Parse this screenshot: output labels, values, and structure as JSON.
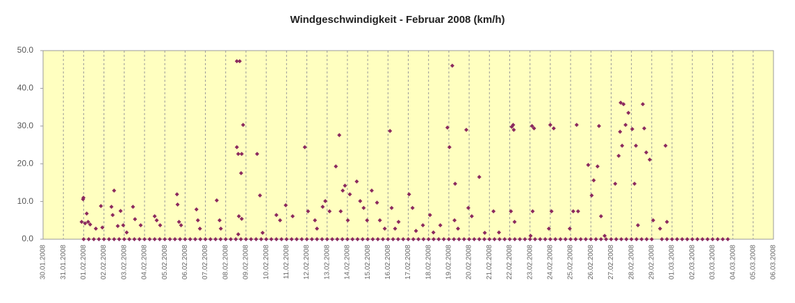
{
  "chart_data": {
    "type": "scatter",
    "title": "Windgeschwindigkeit - Februar 2008 (km/h)",
    "color": "#8b2a5e",
    "background": "#ffffc0",
    "grid": "x",
    "xlim": [
      39477,
      39513
    ],
    "ylim": [
      0,
      50
    ],
    "yticks": [
      {
        "value": 0,
        "label": "0.0"
      },
      {
        "value": 10,
        "label": "10.0"
      },
      {
        "value": 20,
        "label": "20.0"
      },
      {
        "value": 30,
        "label": "30.0"
      },
      {
        "value": 40,
        "label": "40.0"
      },
      {
        "value": 50,
        "label": "50.0"
      }
    ],
    "xticks": [
      {
        "value": 39477,
        "label": "30.01.2008"
      },
      {
        "value": 39478,
        "label": "31.01.2008"
      },
      {
        "value": 39479,
        "label": "01.02.2008"
      },
      {
        "value": 39480,
        "label": "02.02.2008"
      },
      {
        "value": 39481,
        "label": "03.02.2008"
      },
      {
        "value": 39482,
        "label": "04.02.2008"
      },
      {
        "value": 39483,
        "label": "05.02.2008"
      },
      {
        "value": 39484,
        "label": "06.02.2008"
      },
      {
        "value": 39485,
        "label": "07.02.2008"
      },
      {
        "value": 39486,
        "label": "08.02.2008"
      },
      {
        "value": 39487,
        "label": "09.02.2008"
      },
      {
        "value": 39488,
        "label": "10.02.2008"
      },
      {
        "value": 39489,
        "label": "11.02.2008"
      },
      {
        "value": 39490,
        "label": "12.02.2008"
      },
      {
        "value": 39491,
        "label": "13.02.2008"
      },
      {
        "value": 39492,
        "label": "14.02.2008"
      },
      {
        "value": 39493,
        "label": "15.02.2008"
      },
      {
        "value": 39494,
        "label": "16.02.2008"
      },
      {
        "value": 39495,
        "label": "17.02.2008"
      },
      {
        "value": 39496,
        "label": "18.02.2008"
      },
      {
        "value": 39497,
        "label": "19.02.2008"
      },
      {
        "value": 39498,
        "label": "20.02.2008"
      },
      {
        "value": 39499,
        "label": "21.02.2008"
      },
      {
        "value": 39500,
        "label": "22.02.2008"
      },
      {
        "value": 39501,
        "label": "23.02.2008"
      },
      {
        "value": 39502,
        "label": "24.02.2008"
      },
      {
        "value": 39503,
        "label": "25.02.2008"
      },
      {
        "value": 39504,
        "label": "26.02.2008"
      },
      {
        "value": 39505,
        "label": "27.02.2008"
      },
      {
        "value": 39506,
        "label": "28.02.2008"
      },
      {
        "value": 39507,
        "label": "29.02.2008"
      },
      {
        "value": 39508,
        "label": "01.03.2008"
      },
      {
        "value": 39509,
        "label": "02.03.2008"
      },
      {
        "value": 39510,
        "label": "03.03.2008"
      },
      {
        "value": 39511,
        "label": "04.03.2008"
      },
      {
        "value": 39512,
        "label": "05.03.2008"
      },
      {
        "value": 39513,
        "label": "06.03.2008"
      }
    ],
    "x": [
      39478.97,
      39478.99,
      39478.9,
      39479.07,
      39479.15,
      39479.22,
      39479.32,
      39479.6,
      39479.85,
      39479.92,
      39480.5,
      39480.37,
      39480.43,
      39480.68,
      39480.82,
      39480.95,
      39481.12,
      39481.43,
      39481.53,
      39481.81,
      39482.5,
      39482.6,
      39482.77,
      39483.6,
      39483.63,
      39483.7,
      39483.8,
      39484.56,
      39484.63,
      39484.73,
      39485.56,
      39485.7,
      39485.76,
      39486.55,
      39486.69,
      39486.55,
      39486.62,
      39486.79,
      39486.86,
      39486.76,
      39486.65,
      39486.79,
      39486.62,
      39487.55,
      39487.69,
      39487.82,
      39488.5,
      39488.68,
      39488.96,
      39489.3,
      39489.9,
      39490.06,
      39490.4,
      39490.5,
      39490.78,
      39490.91,
      39491.12,
      39491.43,
      39491.6,
      39491.67,
      39491.77,
      39491.88,
      39492.02,
      39492.12,
      39492.46,
      39492.63,
      39492.8,
      39492.97,
      39493.2,
      39493.46,
      39493.6,
      39493.84,
      39494.1,
      39494.18,
      39494.35,
      39494.52,
      39495.04,
      39495.21,
      39495.38,
      39495.72,
      39496.07,
      39496.24,
      39496.58,
      39496.93,
      39497.03,
      39497.17,
      39497.31,
      39497.28,
      39497.45,
      39497.86,
      39497.96,
      39498.13,
      39498.5,
      39498.77,
      39499.2,
      39499.47,
      39500.1,
      39500.17,
      39500.2,
      39500.06,
      39500.24,
      39501.1,
      39501.2,
      39501.13,
      39501.03,
      39502.0,
      39502.17,
      39502.06,
      39501.93,
      39503.3,
      39503.13,
      39503.37,
      39502.96,
      39503.87,
      39504.04,
      39504.14,
      39504.4,
      39504.33,
      39504.5,
      39504.68,
      39505.2,
      39505.37,
      39505.44,
      39505.47,
      39505.61,
      39505.54,
      39505.71,
      39505.85,
      39506.04,
      39506.15,
      39506.22,
      39506.32,
      39506.56,
      39506.63,
      39506.73,
      39506.9,
      39507.07,
      39507.41,
      39507.68,
      39507.75,
      39479,
      39479.25,
      39479.5,
      39479.75,
      39480,
      39480.25,
      39480.5,
      39480.75,
      39481,
      39481.25,
      39481.5,
      39481.75,
      39482,
      39482.25,
      39482.5,
      39482.75,
      39483,
      39483.25,
      39483.5,
      39483.75,
      39484,
      39484.25,
      39484.5,
      39484.75,
      39485,
      39485.25,
      39485.5,
      39485.75,
      39486,
      39486.25,
      39486.5,
      39486.75,
      39487,
      39487.25,
      39487.5,
      39487.75,
      39488,
      39488.25,
      39488.5,
      39488.75,
      39489,
      39489.25,
      39489.5,
      39489.75,
      39490,
      39490.25,
      39490.5,
      39490.75,
      39491,
      39491.25,
      39491.5,
      39491.75,
      39492,
      39492.25,
      39492.5,
      39492.75,
      39493,
      39493.25,
      39493.5,
      39493.75,
      39494,
      39494.25,
      39494.5,
      39494.75,
      39495,
      39495.25,
      39495.5,
      39495.75,
      39496,
      39496.25,
      39496.5,
      39496.75,
      39497,
      39497.25,
      39497.5,
      39497.75,
      39498,
      39498.25,
      39498.5,
      39498.75,
      39499,
      39499.25,
      39499.5,
      39499.75,
      39500,
      39500.25,
      39500.5,
      39500.75,
      39501,
      39501.25,
      39501.5,
      39501.75,
      39502,
      39502.25,
      39502.5,
      39502.75,
      39503,
      39503.25,
      39503.5,
      39503.75,
      39504,
      39504.25,
      39504.5,
      39504.75,
      39505,
      39505.25,
      39505.5,
      39505.75,
      39506,
      39506.25,
      39506.5,
      39506.75,
      39507,
      39507.5,
      39507.75,
      39508,
      39508.25,
      39508.5,
      39508.75,
      39509,
      39509.25,
      39509.5,
      39509.75,
      39510,
      39510.25,
      39510.5,
      39510.75
    ],
    "values": [
      10.6,
      11.0,
      4.6,
      4.2,
      6.8,
      4.6,
      3.9,
      2.8,
      8.8,
      3.1,
      12.9,
      8.6,
      6.4,
      3.5,
      7.5,
      3.7,
      1.8,
      8.6,
      5.3,
      3.7,
      6.1,
      5.0,
      3.7,
      11.9,
      9.2,
      4.6,
      3.7,
      7.9,
      5.0,
      2.8,
      10.3,
      5.0,
      2.8,
      47.2,
      47.2,
      24.4,
      22.6,
      22.6,
      30.3,
      17.5,
      6.1,
      5.4,
      1.3,
      22.6,
      11.6,
      1.7,
      6.4,
      5.0,
      9.0,
      6.1,
      24.4,
      7.4,
      5.0,
      2.8,
      8.6,
      10.1,
      7.4,
      19.3,
      27.6,
      7.4,
      12.9,
      14.2,
      5.0,
      11.9,
      15.3,
      10.1,
      8.3,
      5.0,
      12.9,
      9.7,
      5.0,
      2.8,
      28.7,
      8.3,
      2.8,
      4.6,
      11.9,
      8.3,
      2.2,
      3.7,
      6.4,
      1.8,
      3.7,
      29.6,
      24.4,
      46.0,
      14.7,
      5.0,
      2.8,
      29.0,
      8.3,
      6.1,
      16.5,
      1.7,
      7.4,
      1.8,
      29.8,
      30.3,
      29.0,
      7.4,
      4.6,
      30.0,
      29.4,
      7.4,
      0.9,
      30.3,
      29.4,
      7.4,
      2.8,
      30.3,
      7.4,
      7.4,
      2.8,
      19.7,
      11.6,
      15.6,
      30.0,
      19.3,
      6.1,
      0.9,
      14.7,
      22.1,
      28.5,
      36.2,
      35.8,
      24.8,
      30.3,
      33.5,
      29.2,
      14.7,
      24.8,
      3.7,
      35.8,
      29.4,
      23.0,
      21.1,
      5.0,
      2.8,
      24.8,
      4.6,
      0,
      0,
      0,
      0,
      0,
      0,
      0,
      0,
      0,
      0,
      0,
      0,
      0,
      0,
      0,
      0,
      0,
      0,
      0,
      0,
      0,
      0,
      0,
      0,
      0,
      0,
      0,
      0,
      0,
      0,
      0,
      0,
      0,
      0,
      0,
      0,
      0,
      0,
      0,
      0,
      0,
      0,
      0,
      0,
      0,
      0,
      0,
      0,
      0,
      0,
      0,
      0,
      0,
      0,
      0,
      0,
      0,
      0,
      0,
      0,
      0,
      0,
      0,
      0,
      0,
      0,
      0,
      0,
      0,
      0,
      0,
      0,
      0,
      0,
      0,
      0,
      0,
      0,
      0,
      0,
      0,
      0,
      0,
      0,
      0,
      0,
      0,
      0,
      0,
      0,
      0,
      0,
      0,
      0,
      0,
      0,
      0,
      0,
      0,
      0,
      0,
      0,
      0,
      0,
      0,
      0,
      0,
      0,
      0,
      0,
      0,
      0,
      0,
      0,
      0,
      0,
      0,
      0,
      0,
      0,
      0,
      0,
      0,
      0,
      0,
      0,
      0
    ]
  }
}
